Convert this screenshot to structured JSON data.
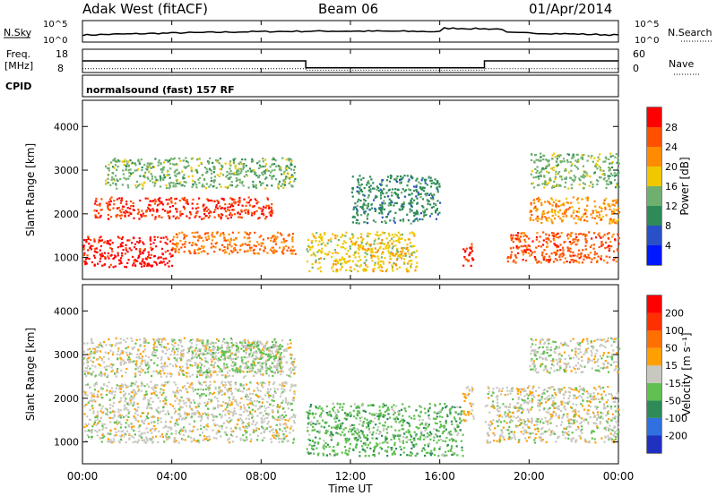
{
  "header": {
    "station": "Adak West (fitACF)",
    "beam": "Beam 06",
    "date": "01/Apr/2014"
  },
  "strip_labels": {
    "nsky": "N.Sky",
    "nsearch": "N.Search",
    "freq": "Freq.",
    "mhz": "[MHz]",
    "nave": "Nave",
    "cpid": "CPID",
    "cpid_value": "normalsound (fast) 157 RF",
    "noise_ticks": [
      "10^5",
      "10^0"
    ],
    "freq_ticks": [
      "18",
      "8"
    ],
    "nave_ticks": [
      "60",
      "0"
    ]
  },
  "colors": {
    "power": [
      "#0018ff",
      "#2850c8",
      "#2e8b57",
      "#6fb06f",
      "#f0c800",
      "#ff8c00",
      "#ff5000",
      "#ff0000"
    ],
    "velocity": [
      "#2030c0",
      "#3070e0",
      "#2e8b57",
      "#60c050",
      "#c8c8c0",
      "#ffa000",
      "#ff7000",
      "#ff3000",
      "#ff0000"
    ]
  },
  "chart_data": {
    "type": "heatmap",
    "x_ticks": [
      "00:00",
      "04:00",
      "08:00",
      "12:00",
      "16:00",
      "20:00",
      "00:00"
    ],
    "xlabel": "Time UT",
    "x_range_hours": [
      0,
      24
    ],
    "y_range_km": [
      500,
      4600
    ],
    "y_ticks": [
      "1000",
      "2000",
      "3000",
      "4000"
    ],
    "noise_panel": {
      "y_scale": "log",
      "y_range": [
        1,
        100000
      ]
    },
    "frequency_panel": {
      "freq_mhz": [
        {
          "from": 0,
          "to": 10,
          "value": 13
        },
        {
          "from": 10,
          "to": 18,
          "value": 10
        },
        {
          "from": 18,
          "to": 24,
          "value": 13
        }
      ],
      "nave": [
        {
          "from": 0,
          "to": 10,
          "value": 10
        },
        {
          "from": 10,
          "to": 18,
          "value": 6
        },
        {
          "from": 18,
          "to": 24,
          "value": 10
        }
      ]
    },
    "panels": [
      {
        "name": "power",
        "ylabel": "Slant Range [km]",
        "colorbar_label": "Power [dB]",
        "colorbar_ticks": [
          "28",
          "24",
          "20",
          "16",
          "12",
          "8",
          "4"
        ],
        "range": [
          0,
          32
        ],
        "regions": [
          {
            "t0": 0,
            "t1": 4,
            "r0": 800,
            "r1": 1500,
            "value": 30
          },
          {
            "t0": 4,
            "t1": 9.5,
            "r0": 1100,
            "r1": 1600,
            "value": 24
          },
          {
            "t0": 0.5,
            "t1": 8.5,
            "r0": 1900,
            "r1": 2400,
            "value": 28
          },
          {
            "t0": 1,
            "t1": 9.5,
            "r0": 2600,
            "r1": 3300,
            "value": 14
          },
          {
            "t0": 10,
            "t1": 15,
            "r0": 700,
            "r1": 1600,
            "value": 18
          },
          {
            "t0": 12,
            "t1": 16,
            "r0": 1800,
            "r1": 2900,
            "value": 10
          },
          {
            "t0": 17,
            "t1": 17.5,
            "r0": 800,
            "r1": 1400,
            "value": 28
          },
          {
            "t0": 19,
            "t1": 24,
            "r0": 900,
            "r1": 1600,
            "value": 26
          },
          {
            "t0": 20,
            "t1": 24,
            "r0": 1800,
            "r1": 2400,
            "value": 22
          },
          {
            "t0": 20,
            "t1": 24,
            "r0": 2600,
            "r1": 3400,
            "value": 14
          }
        ]
      },
      {
        "name": "velocity",
        "ylabel": "Slant Range [km]",
        "colorbar_label": "Velocity [m s⁻¹]",
        "colorbar_ticks": [
          "200",
          "100",
          "50",
          "15",
          "-15",
          "-50",
          "-100",
          "-200"
        ],
        "range": [
          -250,
          250
        ],
        "regions": [
          {
            "t0": 0,
            "t1": 9.5,
            "r0": 1000,
            "r1": 2400,
            "value": 0
          },
          {
            "t0": 0,
            "t1": 9.5,
            "r0": 2500,
            "r1": 3400,
            "value": 0
          },
          {
            "t0": 5,
            "t1": 9,
            "r0": 2600,
            "r1": 3300,
            "value": -40
          },
          {
            "t0": 10,
            "t1": 17,
            "r0": 700,
            "r1": 1900,
            "value": -60
          },
          {
            "t0": 17,
            "t1": 17.5,
            "r0": 1500,
            "r1": 2300,
            "value": 40
          },
          {
            "t0": 18,
            "t1": 24,
            "r0": 1000,
            "r1": 2300,
            "value": 0
          },
          {
            "t0": 20,
            "t1": 24,
            "r0": 2600,
            "r1": 3400,
            "value": 0
          }
        ]
      }
    ]
  }
}
